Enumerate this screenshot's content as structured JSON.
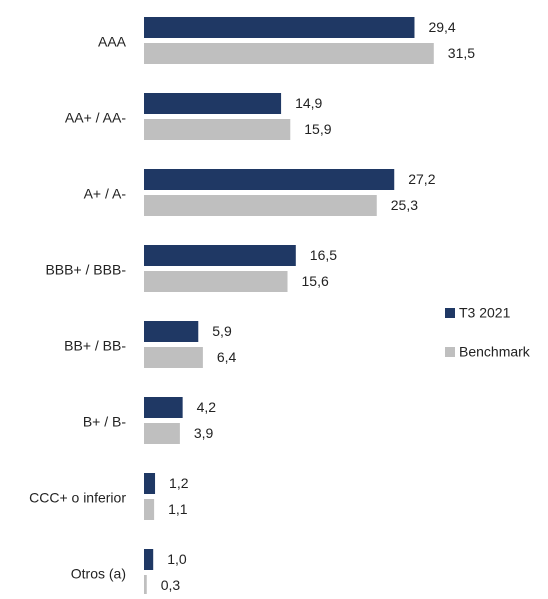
{
  "chart_data": {
    "type": "hbar",
    "categories": [
      "AAA",
      "AA+ / AA-",
      "A+ / A-",
      "BBB+ / BBB-",
      "BB+ / BB-",
      "B+ / B-",
      "CCC+ o inferior",
      "Otros (a)"
    ],
    "series": [
      {
        "name": "T3 2021",
        "color": "#1f3864",
        "values": [
          29.4,
          14.9,
          27.2,
          16.5,
          5.9,
          4.2,
          1.2,
          1.0
        ],
        "value_labels": [
          "29,4",
          "14,9",
          "27,2",
          "16,5",
          "5,9",
          "4,2",
          "1,2",
          "1,0"
        ]
      },
      {
        "name": "Benchmark",
        "color": "#bfbfbf",
        "values": [
          31.5,
          15.9,
          25.3,
          15.6,
          6.4,
          3.9,
          1.1,
          0.3
        ],
        "value_labels": [
          "31,5",
          "15,9",
          "25,3",
          "15,6",
          "6,4",
          "3,9",
          "1,1",
          "0,3"
        ]
      }
    ],
    "xlim": [
      0,
      40
    ],
    "legend": "right"
  }
}
